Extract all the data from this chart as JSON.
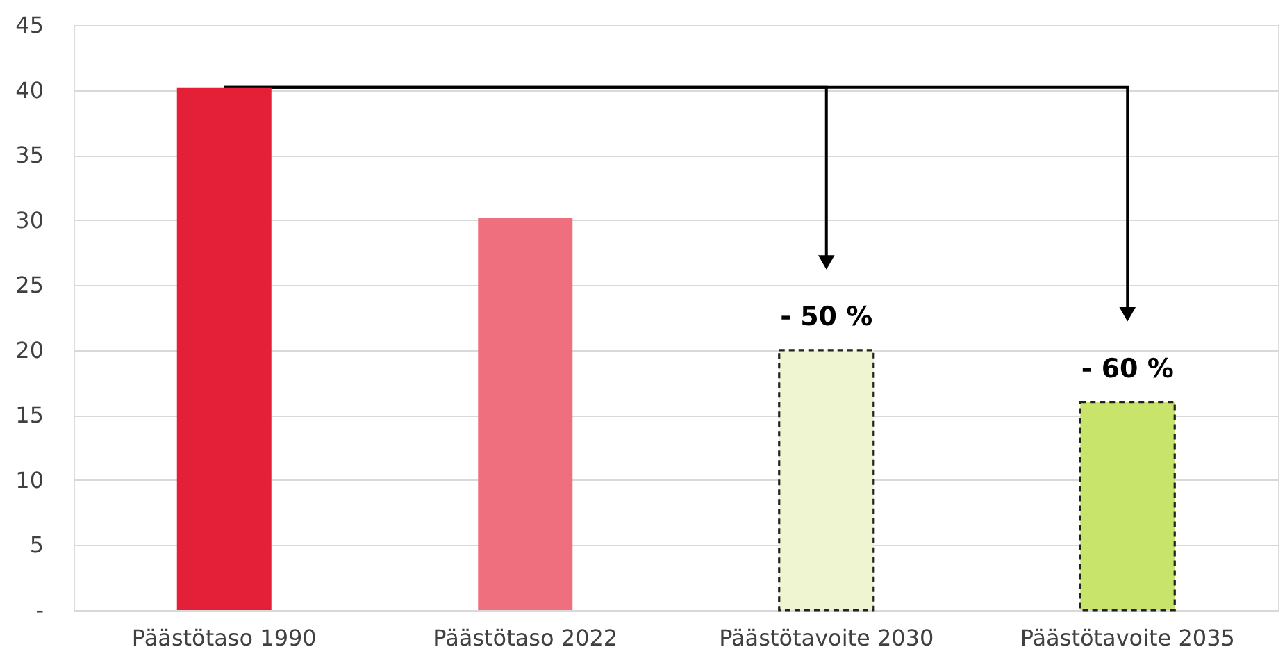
{
  "chart_data": {
    "type": "bar",
    "categories": [
      "Päästötaso 1990",
      "Päästötaso 2022",
      "Päästötavoite 2030",
      "Päästötavoite 2035"
    ],
    "series": [
      {
        "colors": [
          "#e42039",
          "#ef6f7f",
          null,
          null
        ],
        "values": [
          40.2,
          30.2,
          null,
          null
        ],
        "line_style": "solid"
      },
      {
        "colors": [
          null,
          null,
          "#eef5d0",
          "#c8e46a"
        ],
        "values": [
          null,
          null,
          20,
          16
        ],
        "line_style": "dashed"
      }
    ],
    "ylim": [
      0,
      45
    ],
    "yticks": [
      {
        "value": 0,
        "label": "-"
      },
      5,
      10,
      15,
      20,
      25,
      30,
      35,
      40,
      45
    ],
    "grid": "y",
    "annotations": [
      "- 50 %",
      "- 60 %"
    ]
  }
}
